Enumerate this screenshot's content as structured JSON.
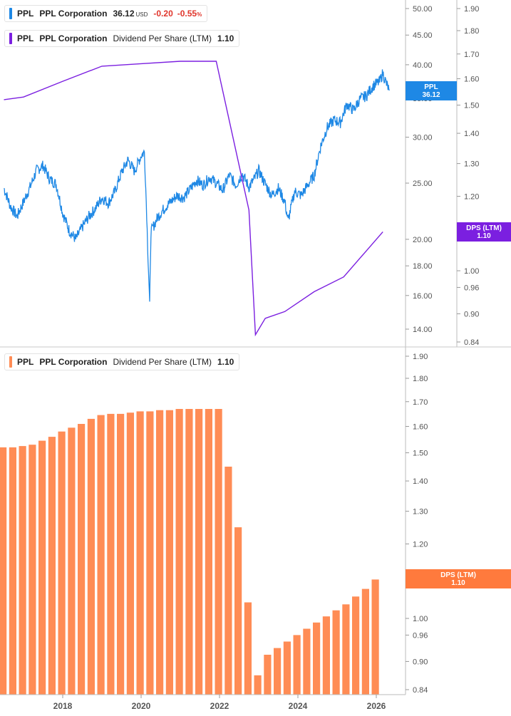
{
  "colors": {
    "price": "#1e88e5",
    "dps": "#7b1fe0",
    "bars": "#ff8c55",
    "neg": "#e0352b"
  },
  "legend_price": {
    "ticker": "PPL",
    "name": "PPL Corporation",
    "value": "36.12",
    "currency": "USD",
    "change": "-0.20",
    "change_pct_num": "-0.55",
    "change_pct_sym": "%"
  },
  "legend_dps_top": {
    "ticker": "PPL",
    "name": "PPL Corporation",
    "metric": "Dividend Per Share (LTM)",
    "value": "1.10"
  },
  "legend_dps_bottom": {
    "ticker": "PPL",
    "name": "PPL Corporation",
    "metric": "Dividend Per Share (LTM)",
    "value": "1.10"
  },
  "tags": {
    "price": {
      "line1": "PPL",
      "line2": "36.12"
    },
    "dps_top": {
      "line1": "DPS (LTM)",
      "line2": "1.10"
    },
    "dps_bottom": {
      "line1": "DPS (LTM)",
      "line2": "1.10"
    }
  },
  "chart_data": [
    {
      "type": "line",
      "title": "PPL Corporation price",
      "y_scale": "log",
      "y_ticks": [
        "50.00",
        "45.00",
        "40.00",
        "35.00",
        "30.00",
        "25.00",
        "20.00",
        "18.00",
        "16.00",
        "14.00"
      ],
      "x_range": [
        "2016-07",
        "2026-07"
      ],
      "series": [
        {
          "name": "PPL",
          "points": [
            [
              "2016-07",
              24.5
            ],
            [
              "2016-09",
              22.8
            ],
            [
              "2016-11",
              21.9
            ],
            [
              "2017-01",
              23.2
            ],
            [
              "2017-03",
              24.6
            ],
            [
              "2017-05",
              26.3
            ],
            [
              "2017-07",
              26.8
            ],
            [
              "2017-09",
              25.4
            ],
            [
              "2017-11",
              24.9
            ],
            [
              "2018-01",
              22.2
            ],
            [
              "2018-03",
              20.7
            ],
            [
              "2018-05",
              20.0
            ],
            [
              "2018-07",
              21.0
            ],
            [
              "2018-09",
              21.9
            ],
            [
              "2018-11",
              22.6
            ],
            [
              "2019-01",
              23.6
            ],
            [
              "2019-03",
              23.1
            ],
            [
              "2019-05",
              24.2
            ],
            [
              "2019-07",
              26.1
            ],
            [
              "2019-09",
              27.4
            ],
            [
              "2019-11",
              26.2
            ],
            [
              "2020-01",
              27.9
            ],
            [
              "2020-02",
              28.3
            ],
            [
              "2020-03",
              19.5
            ],
            [
              "2020-03-20",
              15.3
            ],
            [
              "2020-04",
              20.6
            ],
            [
              "2020-06",
              21.8
            ],
            [
              "2020-08",
              22.6
            ],
            [
              "2020-10",
              23.2
            ],
            [
              "2020-12",
              23.8
            ],
            [
              "2021-02",
              23.6
            ],
            [
              "2021-04",
              24.4
            ],
            [
              "2021-06",
              25.3
            ],
            [
              "2021-08",
              24.8
            ],
            [
              "2021-10",
              25.6
            ],
            [
              "2021-12",
              25.0
            ],
            [
              "2022-02",
              24.3
            ],
            [
              "2022-04",
              25.8
            ],
            [
              "2022-06",
              24.8
            ],
            [
              "2022-08",
              25.9
            ],
            [
              "2022-10",
              24.6
            ],
            [
              "2022-12",
              25.6
            ],
            [
              "2023-01",
              26.3
            ],
            [
              "2023-03",
              24.9
            ],
            [
              "2023-05",
              23.8
            ],
            [
              "2023-07",
              24.5
            ],
            [
              "2023-09",
              23.2
            ],
            [
              "2023-10",
              21.5
            ],
            [
              "2023-12",
              24.2
            ],
            [
              "2024-02",
              23.8
            ],
            [
              "2024-04",
              24.8
            ],
            [
              "2024-06",
              25.8
            ],
            [
              "2024-08",
              29.0
            ],
            [
              "2024-10",
              31.2
            ],
            [
              "2024-12",
              32.1
            ],
            [
              "2025-02",
              31.8
            ],
            [
              "2025-04",
              34.2
            ],
            [
              "2025-06",
              33.4
            ],
            [
              "2025-08",
              34.9
            ],
            [
              "2025-10",
              35.4
            ],
            [
              "2025-12",
              36.8
            ],
            [
              "2026-02",
              37.4
            ],
            [
              "2026-03",
              38.7
            ],
            [
              "2026-04",
              37.2
            ],
            [
              "2026-05",
              36.12
            ]
          ]
        }
      ]
    },
    {
      "type": "line",
      "title": "Dividend Per Share (LTM)",
      "y_scale": "log",
      "y_ticks": [
        "1.90",
        "1.80",
        "1.70",
        "1.60",
        "1.50",
        "1.40",
        "1.30",
        "1.20",
        "1.10",
        "1.00",
        "0.96",
        "0.90",
        "0.84"
      ],
      "series": [
        {
          "name": "DPS (LTM)",
          "points": [
            [
              "2016-07",
              1.52
            ],
            [
              "2017-01",
              1.53
            ],
            [
              "2018-01",
              1.59
            ],
            [
              "2019-01",
              1.65
            ],
            [
              "2020-01",
              1.66
            ],
            [
              "2021-01",
              1.67
            ],
            [
              "2021-12",
              1.67
            ],
            [
              "2022-10",
              1.16
            ],
            [
              "2022-12",
              0.855
            ],
            [
              "2023-03",
              0.89
            ],
            [
              "2023-09",
              0.905
            ],
            [
              "2024-06",
              0.95
            ],
            [
              "2025-03",
              0.985
            ],
            [
              "2026-03",
              1.1
            ]
          ]
        }
      ]
    },
    {
      "type": "bar",
      "title": "Dividend Per Share (LTM)",
      "y_scale": "log",
      "y_ticks": [
        "1.90",
        "1.80",
        "1.70",
        "1.60",
        "1.50",
        "1.40",
        "1.30",
        "1.20",
        "1.10",
        "1.00",
        "0.96",
        "0.90",
        "0.84"
      ],
      "x_ticks": [
        "2018",
        "2020",
        "2022",
        "2024",
        "2026"
      ],
      "categories": [
        "2016-Q3",
        "2016-Q4",
        "2017-Q1",
        "2017-Q2",
        "2017-Q3",
        "2017-Q4",
        "2018-Q1",
        "2018-Q2",
        "2018-Q3",
        "2018-Q4",
        "2019-Q1",
        "2019-Q2",
        "2019-Q3",
        "2019-Q4",
        "2020-Q1",
        "2020-Q2",
        "2020-Q3",
        "2020-Q4",
        "2021-Q1",
        "2021-Q2",
        "2021-Q3",
        "2021-Q4",
        "2022-Q1",
        "2022-Q2",
        "2022-Q3",
        "2022-Q4",
        "2023-Q1",
        "2023-Q2",
        "2023-Q3",
        "2023-Q4",
        "2024-Q1",
        "2024-Q2",
        "2024-Q3",
        "2024-Q4",
        "2025-Q1",
        "2025-Q2",
        "2025-Q3",
        "2025-Q4",
        "2026-Q1"
      ],
      "values": [
        1.52,
        1.52,
        1.525,
        1.53,
        1.545,
        1.56,
        1.58,
        1.595,
        1.61,
        1.63,
        1.645,
        1.65,
        1.65,
        1.655,
        1.66,
        1.66,
        1.665,
        1.665,
        1.67,
        1.67,
        1.67,
        1.67,
        1.67,
        1.45,
        1.25,
        1.04,
        0.87,
        0.915,
        0.93,
        0.945,
        0.96,
        0.975,
        0.99,
        1.005,
        1.02,
        1.035,
        1.055,
        1.075,
        1.1
      ],
      "ylim": [
        0.84,
        1.9
      ]
    }
  ]
}
